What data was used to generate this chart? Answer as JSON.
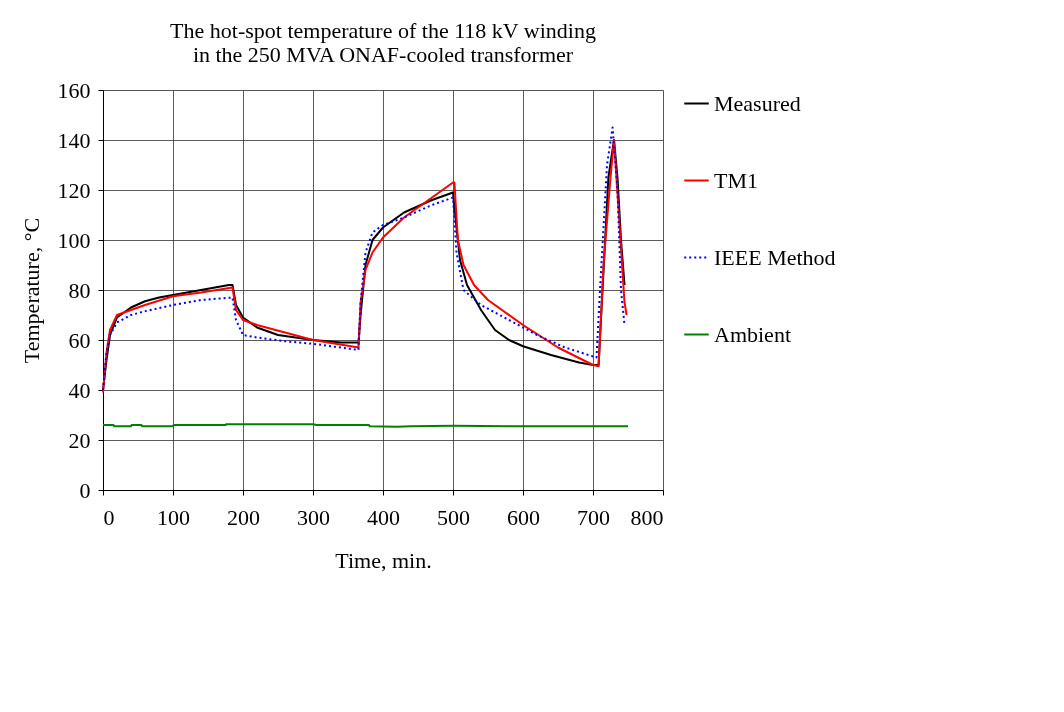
{
  "chart_data": {
    "type": "line",
    "title": "The hot-spot temperature of the 118 kV winding\nin the 250 MVA ONAF-cooled transformer",
    "xlabel": "Time, min.",
    "ylabel": "Temperature, °C",
    "xlim": [
      0,
      800
    ],
    "xticks": [
      0,
      100,
      200,
      300,
      400,
      500,
      600,
      700,
      800
    ],
    "ylim": [
      0,
      160
    ],
    "yticks": [
      0,
      20,
      40,
      60,
      80,
      100,
      120,
      140,
      160
    ],
    "grid": true,
    "legend": "right",
    "marker": "none",
    "series": [
      {
        "name": "Measured",
        "color": "#000000",
        "line_style": "solid",
        "x": [
          0,
          5,
          10,
          20,
          40,
          60,
          80,
          100,
          140,
          180,
          185,
          190,
          200,
          220,
          250,
          300,
          340,
          365,
          368,
          375,
          385,
          400,
          430,
          470,
          500,
          505,
          510,
          520,
          540,
          560,
          580,
          600,
          640,
          680,
          700,
          708,
          722,
          730,
          735,
          740,
          745
        ],
        "values": [
          40,
          52,
          62,
          69,
          73,
          75.5,
          77,
          78,
          80,
          82,
          82,
          74,
          69,
          65,
          62,
          60,
          59,
          59,
          70,
          90,
          100,
          105,
          111,
          116,
          119,
          105,
          92,
          82,
          72,
          64,
          60,
          57.5,
          54,
          51,
          50,
          50,
          125,
          140,
          125,
          100,
          82
        ]
      },
      {
        "name": "TM1",
        "color": "#ff0000",
        "line_style": "solid",
        "x": [
          0,
          5,
          10,
          20,
          40,
          60,
          100,
          140,
          185,
          190,
          200,
          220,
          260,
          300,
          365,
          368,
          375,
          385,
          400,
          430,
          470,
          500,
          502,
          507,
          515,
          530,
          550,
          600,
          650,
          700,
          708,
          715,
          725,
          730,
          737,
          745,
          748
        ],
        "values": [
          39,
          55,
          64,
          70,
          72,
          74,
          77.5,
          79,
          81,
          72,
          68,
          66,
          63,
          60,
          57,
          75,
          88,
          95,
          101,
          109,
          117,
          123,
          123,
          100,
          90,
          82,
          76,
          66,
          57,
          50,
          49.5,
          90,
          125,
          140,
          110,
          75,
          70
        ]
      },
      {
        "name": "IEEE Method",
        "color": "#0000ff",
        "line_style": "dotted",
        "x": [
          0,
          5,
          10,
          20,
          40,
          60,
          100,
          140,
          185,
          190,
          200,
          220,
          260,
          300,
          365,
          368,
          375,
          385,
          400,
          430,
          470,
          500,
          505,
          515,
          540,
          580,
          620,
          660,
          705,
          710,
          720,
          728,
          735,
          740,
          745
        ],
        "values": [
          40,
          55,
          62,
          67,
          70,
          71.5,
          74,
          76,
          77,
          68,
          62,
          61,
          59.5,
          58.5,
          56,
          75,
          95,
          103,
          106,
          109,
          114,
          117,
          95,
          80,
          74,
          68,
          62,
          57,
          53,
          80,
          130,
          145,
          120,
          80,
          66
        ]
      },
      {
        "name": "Ambient",
        "color": "#008000",
        "line_style": "solid",
        "x": [
          0,
          15,
          16,
          40,
          41,
          55,
          56,
          100,
          101,
          175,
          176,
          300,
          305,
          380,
          381,
          420,
          440,
          500,
          580,
          750
        ],
        "values": [
          26,
          26,
          25.5,
          25.5,
          26,
          26,
          25.5,
          25.5,
          26,
          26,
          26.3,
          26.3,
          26,
          26,
          25.5,
          25.3,
          25.5,
          25.7,
          25.5,
          25.5
        ]
      }
    ]
  }
}
